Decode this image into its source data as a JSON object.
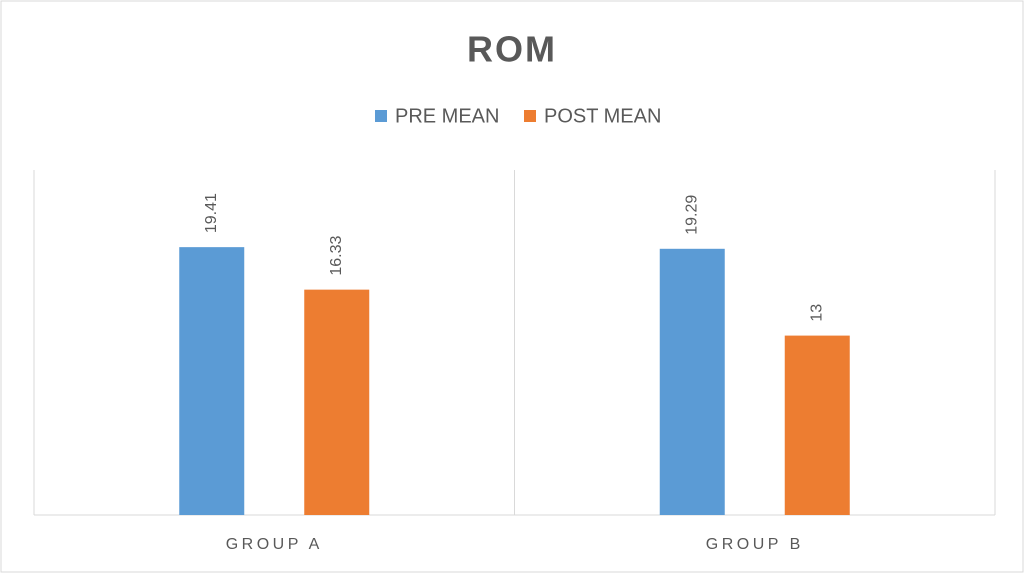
{
  "chart_data": {
    "type": "bar",
    "title": "ROM",
    "categories": [
      "GROUP A",
      "GROUP B"
    ],
    "series": [
      {
        "name": "PRE MEAN",
        "color": "#5b9bd5",
        "values": [
          19.41,
          19.29
        ]
      },
      {
        "name": "POST MEAN",
        "color": "#ed7d31",
        "values": [
          16.33,
          13
        ]
      }
    ],
    "ylim": [
      0,
      25
    ],
    "legend": "top"
  }
}
